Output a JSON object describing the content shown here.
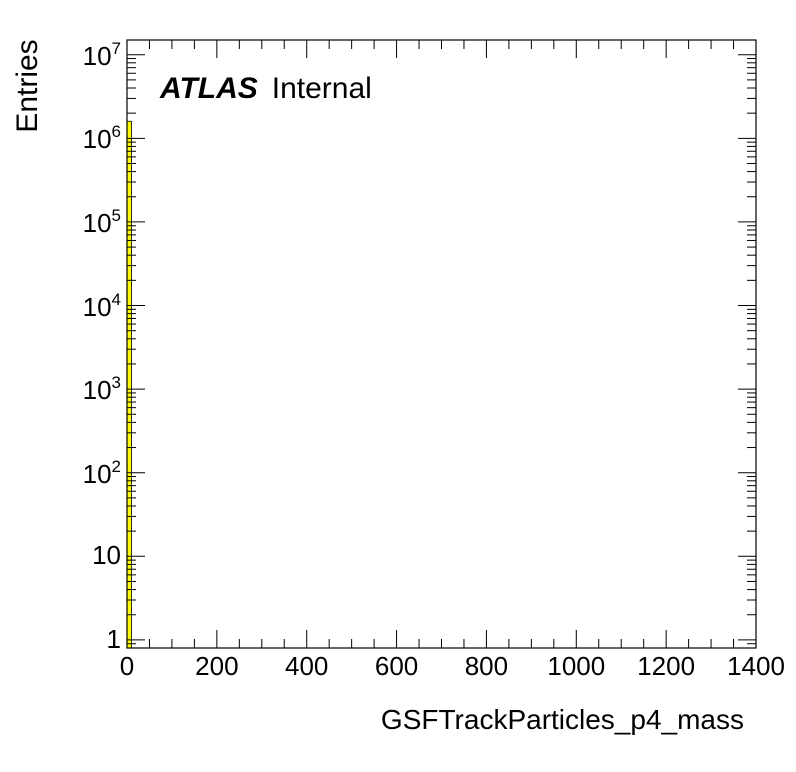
{
  "chart_data": {
    "type": "bar",
    "xlabel": "GSFTrackParticles_p4_mass",
    "ylabel": "Entries",
    "xlim": [
      0,
      1400
    ],
    "ylim_log": [
      0.8,
      15000000
    ],
    "log_y": true,
    "grid": false,
    "fill_color": "#ffff00",
    "edge_color": "#000000",
    "bins": [
      {
        "x_low": 0,
        "x_high": 10,
        "value": 1600000
      }
    ],
    "x_ticks": [
      "0",
      "200",
      "400",
      "600",
      "800",
      "1000",
      "1200",
      "1400"
    ],
    "y_ticks": [
      {
        "base": "1",
        "exp": ""
      },
      {
        "base": "10",
        "exp": ""
      },
      {
        "base": "10",
        "exp": "2"
      },
      {
        "base": "10",
        "exp": "3"
      },
      {
        "base": "10",
        "exp": "4"
      },
      {
        "base": "10",
        "exp": "5"
      },
      {
        "base": "10",
        "exp": "6"
      },
      {
        "base": "10",
        "exp": "7"
      }
    ]
  },
  "annotation": {
    "atlas": "ATLAS",
    "status": "Internal"
  }
}
